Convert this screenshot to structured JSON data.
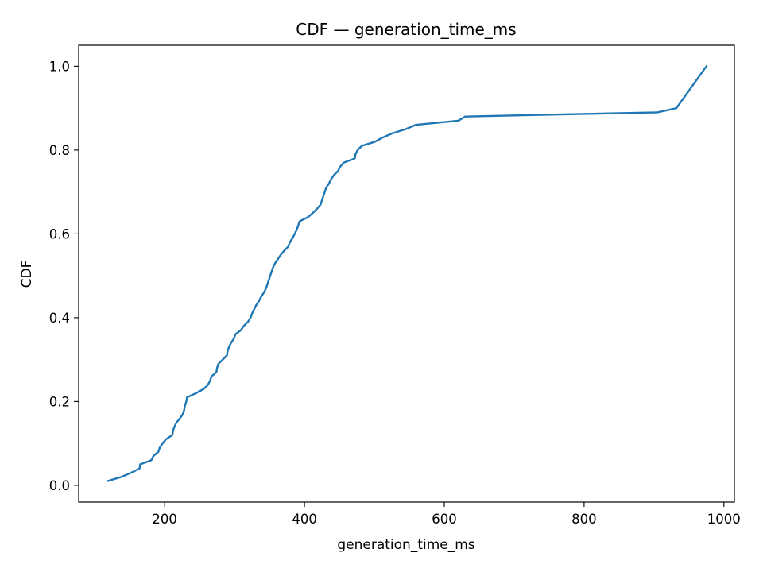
{
  "chart_data": {
    "type": "line",
    "title": "CDF — generation_time_ms",
    "xlabel": "generation_time_ms",
    "ylabel": "CDF",
    "xlim": [
      77,
      1015
    ],
    "ylim": [
      -0.04,
      1.05
    ],
    "xticks": [
      200,
      400,
      600,
      800,
      1000
    ],
    "yticks": [
      0.0,
      0.2,
      0.4,
      0.6,
      0.8,
      1.0
    ],
    "xtick_labels": [
      "200",
      "400",
      "600",
      "800",
      "1000"
    ],
    "ytick_labels": [
      "0.0",
      "0.2",
      "0.4",
      "0.6",
      "0.8",
      "1.0"
    ],
    "grid": false,
    "series": [
      {
        "name": "generation_time_ms",
        "color": "#1f77b4",
        "x": [
          118,
          138,
          152,
          164,
          165,
          181,
          184,
          191,
          193,
          197,
          202,
          211,
          212,
          214,
          217,
          222,
          226,
          228,
          229,
          231,
          232,
          245,
          256,
          262,
          265,
          267,
          274,
          275,
          277,
          283,
          289,
          290,
          292,
          295,
          299,
          301,
          309,
          313,
          319,
          323,
          325,
          328,
          331,
          335,
          338,
          342,
          345,
          347,
          349,
          351,
          353,
          355,
          358,
          362,
          366,
          371,
          377,
          379,
          383,
          386,
          389,
          391,
          393,
          405,
          412,
          418,
          423,
          425,
          427,
          429,
          431,
          435,
          438,
          442,
          448,
          451,
          456,
          472,
          473,
          476,
          482,
          501,
          512,
          526,
          545,
          559,
          620,
          630,
          905,
          932,
          975
        ],
        "y": [
          0.01,
          0.02,
          0.03,
          0.04,
          0.05,
          0.06,
          0.07,
          0.08,
          0.09,
          0.1,
          0.11,
          0.12,
          0.13,
          0.14,
          0.15,
          0.16,
          0.17,
          0.18,
          0.19,
          0.2,
          0.21,
          0.22,
          0.23,
          0.24,
          0.25,
          0.26,
          0.27,
          0.28,
          0.29,
          0.3,
          0.31,
          0.32,
          0.33,
          0.34,
          0.35,
          0.36,
          0.37,
          0.38,
          0.39,
          0.4,
          0.41,
          0.42,
          0.43,
          0.44,
          0.45,
          0.46,
          0.47,
          0.48,
          0.49,
          0.5,
          0.51,
          0.52,
          0.53,
          0.54,
          0.55,
          0.56,
          0.57,
          0.58,
          0.59,
          0.6,
          0.61,
          0.62,
          0.63,
          0.64,
          0.65,
          0.66,
          0.67,
          0.68,
          0.69,
          0.7,
          0.71,
          0.72,
          0.73,
          0.74,
          0.75,
          0.76,
          0.77,
          0.78,
          0.79,
          0.8,
          0.81,
          0.82,
          0.83,
          0.84,
          0.85,
          0.86,
          0.87,
          0.88,
          0.89,
          0.9,
          1.0
        ]
      }
    ]
  }
}
